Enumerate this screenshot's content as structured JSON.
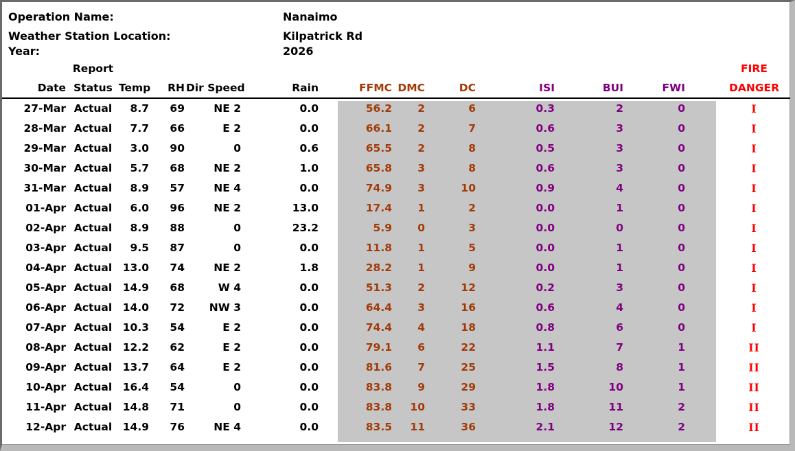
{
  "info": {
    "operation_name_label": "Operation Name:",
    "operation_name_value": "Nanaimo",
    "station_label": "Weather Station Location:",
    "station_value": "Kilpatrick Rd",
    "year_label": "Year:",
    "year_value": "2026"
  },
  "colors": {
    "index_brown": "#a33b08",
    "index_purple": "#800080",
    "danger_red": "#ff0000",
    "shade_gray": "#c6c6c6",
    "text_black": "#000000"
  },
  "table": {
    "columns": [
      {
        "key": "date",
        "line1": "",
        "line2": "Date",
        "color": "#000000"
      },
      {
        "key": "status",
        "line1": "Report",
        "line2": "Status",
        "color": "#000000"
      },
      {
        "key": "temp",
        "line1": "",
        "line2": "Temp",
        "color": "#000000"
      },
      {
        "key": "rh",
        "line1": "",
        "line2": "RH",
        "color": "#000000"
      },
      {
        "key": "dir-speed",
        "line1": "",
        "line2": "Dir Speed",
        "color": "#000000"
      },
      {
        "key": "rain",
        "line1": "",
        "line2": "Rain",
        "color": "#000000"
      },
      {
        "key": "ffmc",
        "line1": "",
        "line2": "FFMC",
        "color": "#a33b08"
      },
      {
        "key": "dmc",
        "line1": "",
        "line2": "DMC",
        "color": "#a33b08"
      },
      {
        "key": "dc",
        "line1": "",
        "line2": "DC",
        "color": "#a33b08"
      },
      {
        "key": "isi",
        "line1": "",
        "line2": "ISI",
        "color": "#800080"
      },
      {
        "key": "bui",
        "line1": "",
        "line2": "BUI",
        "color": "#800080"
      },
      {
        "key": "fwi",
        "line1": "",
        "line2": "FWI",
        "color": "#800080"
      },
      {
        "key": "fire-danger",
        "line1": "FIRE",
        "line2": "DANGER",
        "color": "#ff0000"
      }
    ],
    "rows": [
      [
        "27-Mar",
        "Actual",
        "8.7",
        "69",
        "NE 2",
        "0.0",
        "56.2",
        "2",
        "6",
        "0.3",
        "2",
        "0",
        "I"
      ],
      [
        "28-Mar",
        "Actual",
        "7.7",
        "66",
        "E 2",
        "0.0",
        "66.1",
        "2",
        "7",
        "0.6",
        "3",
        "0",
        "I"
      ],
      [
        "29-Mar",
        "Actual",
        "3.0",
        "90",
        "0",
        "0.6",
        "65.5",
        "2",
        "8",
        "0.5",
        "3",
        "0",
        "I"
      ],
      [
        "30-Mar",
        "Actual",
        "5.7",
        "68",
        "NE 2",
        "1.0",
        "65.8",
        "3",
        "8",
        "0.6",
        "3",
        "0",
        "I"
      ],
      [
        "31-Mar",
        "Actual",
        "8.9",
        "57",
        "NE 4",
        "0.0",
        "74.9",
        "3",
        "10",
        "0.9",
        "4",
        "0",
        "I"
      ],
      [
        "01-Apr",
        "Actual",
        "6.0",
        "96",
        "NE 2",
        "13.0",
        "17.4",
        "1",
        "2",
        "0.0",
        "1",
        "0",
        "I"
      ],
      [
        "02-Apr",
        "Actual",
        "8.9",
        "88",
        "0",
        "23.2",
        "5.9",
        "0",
        "3",
        "0.0",
        "0",
        "0",
        "I"
      ],
      [
        "03-Apr",
        "Actual",
        "9.5",
        "87",
        "0",
        "0.0",
        "11.8",
        "1",
        "5",
        "0.0",
        "1",
        "0",
        "I"
      ],
      [
        "04-Apr",
        "Actual",
        "13.0",
        "74",
        "NE 2",
        "1.8",
        "28.2",
        "1",
        "9",
        "0.0",
        "1",
        "0",
        "I"
      ],
      [
        "05-Apr",
        "Actual",
        "14.9",
        "68",
        "W 4",
        "0.0",
        "51.3",
        "2",
        "12",
        "0.2",
        "3",
        "0",
        "I"
      ],
      [
        "06-Apr",
        "Actual",
        "14.0",
        "72",
        "NW 3",
        "0.0",
        "64.4",
        "3",
        "16",
        "0.6",
        "4",
        "0",
        "I"
      ],
      [
        "07-Apr",
        "Actual",
        "10.3",
        "54",
        "E 2",
        "0.0",
        "74.4",
        "4",
        "18",
        "0.8",
        "6",
        "0",
        "I"
      ],
      [
        "08-Apr",
        "Actual",
        "12.2",
        "62",
        "E 2",
        "0.0",
        "79.1",
        "6",
        "22",
        "1.1",
        "7",
        "1",
        "II"
      ],
      [
        "09-Apr",
        "Actual",
        "13.7",
        "64",
        "E 2",
        "0.0",
        "81.6",
        "7",
        "25",
        "1.5",
        "8",
        "1",
        "II"
      ],
      [
        "10-Apr",
        "Actual",
        "16.4",
        "54",
        "0",
        "0.0",
        "83.8",
        "9",
        "29",
        "1.8",
        "10",
        "1",
        "II"
      ],
      [
        "11-Apr",
        "Actual",
        "14.8",
        "71",
        "0",
        "0.0",
        "83.8",
        "10",
        "33",
        "1.8",
        "11",
        "2",
        "II"
      ],
      [
        "12-Apr",
        "Actual",
        "14.9",
        "76",
        "NE 4",
        "0.0",
        "83.5",
        "11",
        "36",
        "2.1",
        "12",
        "2",
        "II"
      ]
    ]
  }
}
